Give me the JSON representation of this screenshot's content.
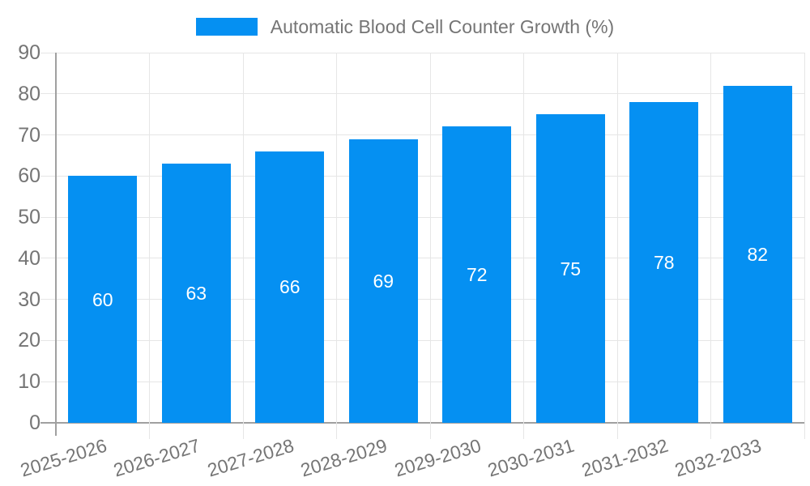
{
  "page": {
    "background": "#ffffff"
  },
  "chart_data": {
    "type": "bar",
    "title": "Automatic Blood Cell Counter Growth (%)",
    "categories": [
      "2025-2026",
      "2026-2027",
      "2027-2028",
      "2028-2029",
      "2029-2030",
      "2030-2031",
      "2031-2032",
      "2032-2033"
    ],
    "values": [
      60,
      63,
      66,
      69,
      72,
      75,
      78,
      82
    ],
    "bar_value_labels": [
      "60",
      "63",
      "66",
      "69",
      "72",
      "75",
      "78",
      "82"
    ],
    "xlabel": "",
    "ylabel": "",
    "ylim": [
      0,
      90
    ],
    "yticks": [
      0,
      10,
      20,
      30,
      40,
      50,
      60,
      70,
      80,
      90
    ],
    "grid": true,
    "legend_position": "top-center",
    "x_label_rotation_deg": -17,
    "colors": {
      "bar": "#0590f2",
      "grid": "#e6e6e6",
      "axis": "#a0a0a0",
      "text": "#757575",
      "value_label": "#ffffff",
      "background": "#ffffff"
    }
  }
}
